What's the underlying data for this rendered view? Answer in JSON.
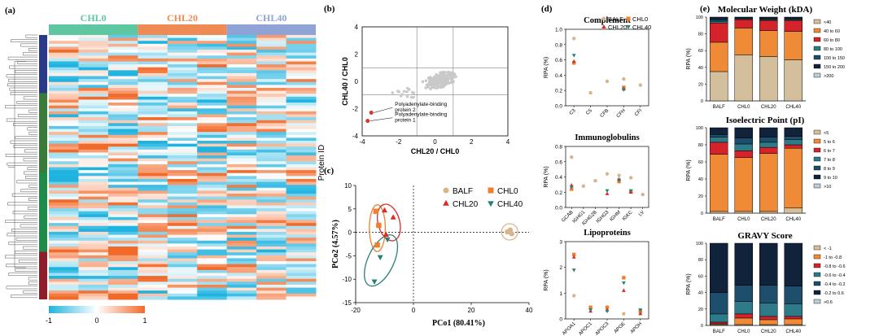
{
  "figure_labels": [
    "(a)",
    "(b)",
    "(c)",
    "(d)",
    "(e)"
  ],
  "chart_data": [
    {
      "panel": "(a)",
      "type": "heatmap",
      "title": "",
      "column_groups": [
        {
          "name": "CHL0",
          "color": "#5ec6a0"
        },
        {
          "name": "CHL20",
          "color": "#f08a55"
        },
        {
          "name": "CHL40",
          "color": "#8fa3d6"
        }
      ],
      "ylabel": "Protein ID",
      "row_cluster_colors": [
        "#2b3a87",
        "#3a7a3a",
        "#1f8a4a",
        "#8b1e2a"
      ],
      "colorbar": {
        "ticks": [
          "-1",
          "0",
          "1"
        ],
        "min": -1,
        "max": 1,
        "colors": [
          "#1fb3e0",
          "#ffffff",
          "#f26a2a"
        ]
      }
    },
    {
      "panel": "(b)",
      "type": "scatter",
      "xlabel": "CHL20 / CHL0",
      "ylabel": "CHL40 / CHL0",
      "xlim": [
        -4,
        4
      ],
      "ylim": [
        -4,
        4
      ],
      "xticks": [
        "-4",
        "-2",
        "0",
        "2",
        "4"
      ],
      "yticks": [
        "4",
        "2",
        "0",
        "-2",
        "-4"
      ],
      "threshold_lines": [
        -1,
        1
      ],
      "highlighted": [
        {
          "label": "Polyadenylate-binding protein 2",
          "x": -3.5,
          "y": -2.3
        },
        {
          "label": "Polyadenylate-binding protein 1",
          "x": -3.7,
          "y": -2.9
        }
      ]
    },
    {
      "panel": "(c)",
      "type": "scatter",
      "xlabel": "PCo1 (80.41%)",
      "ylabel": "PCo2 (4.57%)",
      "xlim": [
        -20,
        40
      ],
      "ylim": [
        -15,
        10
      ],
      "xticks": [
        "-20",
        "0",
        "20",
        "40"
      ],
      "yticks": [
        "10",
        "5",
        "0",
        "-5",
        "-10",
        "-15"
      ],
      "legend": [
        "BALF",
        "CHL0",
        "CHL20",
        "CHL40"
      ],
      "series": [
        {
          "name": "BALF",
          "color": "#d8b48a",
          "marker": "circle",
          "points": [
            [
              32.5,
              0.1
            ],
            [
              33.5,
              0.5
            ],
            [
              34,
              -0.3
            ]
          ]
        },
        {
          "name": "CHL0",
          "color": "#f07f2e",
          "marker": "square",
          "points": [
            [
              -13,
              4.5
            ],
            [
              -12,
              1.5
            ],
            [
              -12.5,
              -2.7
            ]
          ]
        },
        {
          "name": "CHL20",
          "color": "#d92b2b",
          "marker": "triangle-up",
          "points": [
            [
              -10,
              4.7
            ],
            [
              -7,
              3.2
            ],
            [
              -9.5,
              -0.5
            ]
          ]
        },
        {
          "name": "CHL40",
          "color": "#2a7f7a",
          "marker": "triangle-down",
          "points": [
            [
              -11.5,
              -5.3
            ],
            [
              -13.5,
              -10.5
            ],
            [
              -9,
              -1.5
            ]
          ]
        }
      ]
    },
    {
      "panel": "(d)",
      "type": "scatter",
      "title": "Complement",
      "ylabel": "RPA (%)",
      "ylim": [
        0,
        1.0
      ],
      "yticks": [
        "0.0",
        "0.2",
        "0.4",
        "0.6",
        "0.8",
        "1.0"
      ],
      "categories": [
        "C3",
        "C5",
        "CFB",
        "CFH",
        "CFI"
      ],
      "legend": [
        "BALF",
        "CHL0",
        "CHL20",
        "CHL40"
      ],
      "series": [
        {
          "name": "BALF",
          "values": [
            0.88,
            0.17,
            0.32,
            0.35,
            0.27
          ]
        },
        {
          "name": "CHL0",
          "values": [
            0.56,
            null,
            null,
            0.24,
            null
          ]
        },
        {
          "name": "CHL20",
          "values": [
            0.58,
            null,
            null,
            0.22,
            null
          ]
        },
        {
          "name": "CHL40",
          "values": [
            0.66,
            null,
            null,
            0.21,
            null
          ]
        }
      ]
    },
    {
      "panel": "(d)",
      "type": "scatter",
      "title": "Immunoglobulins",
      "ylabel": "RPA (%)",
      "ylim": [
        0,
        0.8
      ],
      "yticks": [
        "0.0",
        "0.2",
        "0.4",
        "0.6",
        "0.8"
      ],
      "categories": [
        "GCAB",
        "IGHG1",
        "IGHG2B",
        "IGHG3",
        "IGHM",
        "IGKC",
        "LV"
      ],
      "series": [
        {
          "name": "BALF",
          "values": [
            0.66,
            0.28,
            0.35,
            0.44,
            0.42,
            0.39,
            0.17
          ]
        },
        {
          "name": "CHL0",
          "values": [
            0.24,
            null,
            null,
            null,
            0.34,
            0.21,
            null
          ]
        },
        {
          "name": "CHL20",
          "values": [
            0.29,
            null,
            null,
            0.18,
            0.37,
            0.2,
            null
          ]
        },
        {
          "name": "CHL40",
          "values": [
            0.27,
            null,
            null,
            0.22,
            0.36,
            0.22,
            null
          ]
        }
      ]
    },
    {
      "panel": "(d)",
      "type": "scatter",
      "title": "Lipoproteins",
      "ylabel": "RPA (%)",
      "ylim": [
        0,
        3
      ],
      "yticks": [
        "0",
        "1",
        "2",
        "3"
      ],
      "categories": [
        "APOA1",
        "APOC1",
        "APOC3",
        "APOE",
        "APOH"
      ],
      "series": [
        {
          "name": "BALF",
          "values": [
            0.9,
            null,
            null,
            0.2,
            0.25
          ]
        },
        {
          "name": "CHL0",
          "values": [
            2.5,
            0.45,
            0.45,
            1.6,
            0.3
          ]
        },
        {
          "name": "CHL20",
          "values": [
            2.4,
            0.3,
            0.35,
            1.1,
            0.2
          ]
        },
        {
          "name": "CHL40",
          "values": [
            1.9,
            0.35,
            0.3,
            1.4,
            0.35
          ]
        }
      ]
    },
    {
      "panel": "(e)",
      "type": "bar",
      "stacked": true,
      "title": "Molecular Weight (kDA)",
      "ylabel": "RPA (%)",
      "ylim": [
        0,
        100
      ],
      "yticks": [
        "0",
        "20",
        "40",
        "60",
        "80",
        "100"
      ],
      "categories": [
        "BALF",
        "CHL0",
        "CHL20",
        "CHL40"
      ],
      "series": [
        {
          "name": "<40",
          "color": "#d4bf9d",
          "values": [
            35,
            55,
            53,
            49
          ]
        },
        {
          "name": "40 to 60",
          "color": "#ef8b36",
          "values": [
            35,
            32,
            31,
            34
          ]
        },
        {
          "name": "60 to 80",
          "color": "#d4232a",
          "values": [
            23,
            10,
            12,
            13
          ]
        },
        {
          "name": "80 to 100",
          "color": "#2d7b88",
          "values": [
            2,
            1,
            1,
            1
          ]
        },
        {
          "name": "100 to 150",
          "color": "#1d4e6b",
          "values": [
            2,
            1,
            1,
            1
          ]
        },
        {
          "name": "150 to 200",
          "color": "#10233a",
          "values": [
            3,
            1,
            2,
            2
          ]
        },
        {
          "name": ">200",
          "color": "#b9cfd6",
          "values": [
            0,
            0,
            0,
            0
          ]
        }
      ]
    },
    {
      "panel": "(e)",
      "type": "bar",
      "stacked": true,
      "title": "Isoelectric Point (pI)",
      "ylabel": "RPA (%)",
      "ylim": [
        0,
        100
      ],
      "yticks": [
        "0",
        "20",
        "40",
        "60",
        "80",
        "100"
      ],
      "categories": [
        "BALF",
        "CHL0",
        "CHL20",
        "CHL40"
      ],
      "series": [
        {
          "name": "<5",
          "color": "#d4bf9d",
          "values": [
            2,
            2,
            2,
            6
          ]
        },
        {
          "name": "5 to 6",
          "color": "#ef8b36",
          "values": [
            67,
            63,
            68,
            70
          ]
        },
        {
          "name": "6 to 7",
          "color": "#d4232a",
          "values": [
            14,
            8,
            7,
            4
          ]
        },
        {
          "name": "7 to 8",
          "color": "#2d7b88",
          "values": [
            6,
            8,
            6,
            6
          ]
        },
        {
          "name": "8 to 9",
          "color": "#1d4e6b",
          "values": [
            3,
            7,
            6,
            4
          ]
        },
        {
          "name": "9 to 10",
          "color": "#10233a",
          "values": [
            8,
            12,
            11,
            10
          ]
        },
        {
          "name": ">10",
          "color": "#b9cfd6",
          "values": [
            0,
            0,
            0,
            0
          ]
        }
      ]
    },
    {
      "panel": "(e)",
      "type": "bar",
      "stacked": true,
      "title": "GRAVY Score",
      "ylabel": "RPA (%)",
      "ylim": [
        0,
        100
      ],
      "yticks": [
        "0",
        "20",
        "40",
        "60",
        "80",
        "100"
      ],
      "categories": [
        "BALF",
        "CHL0",
        "CHL20",
        "CHL40"
      ],
      "series": [
        {
          "name": "< -1",
          "color": "#d4bf9d",
          "values": [
            1,
            1,
            1,
            1
          ]
        },
        {
          "name": "-1 to -0.8",
          "color": "#ef8b36",
          "values": [
            1,
            8,
            6,
            7
          ]
        },
        {
          "name": "-0.8 to -0.6",
          "color": "#d4232a",
          "values": [
            2,
            5,
            4,
            3
          ]
        },
        {
          "name": "-0.6 to -0.4",
          "color": "#2d7b88",
          "values": [
            10,
            15,
            16,
            15
          ]
        },
        {
          "name": "-0.4 to -0.2",
          "color": "#1d4e6b",
          "values": [
            26,
            20,
            22,
            22
          ]
        },
        {
          "name": "-0.2 to 0.6",
          "color": "#10233a",
          "values": [
            60,
            51,
            51,
            52
          ]
        },
        {
          "name": ">0.6",
          "color": "#b9cfd6",
          "values": [
            0,
            0,
            0,
            0
          ]
        }
      ]
    }
  ]
}
